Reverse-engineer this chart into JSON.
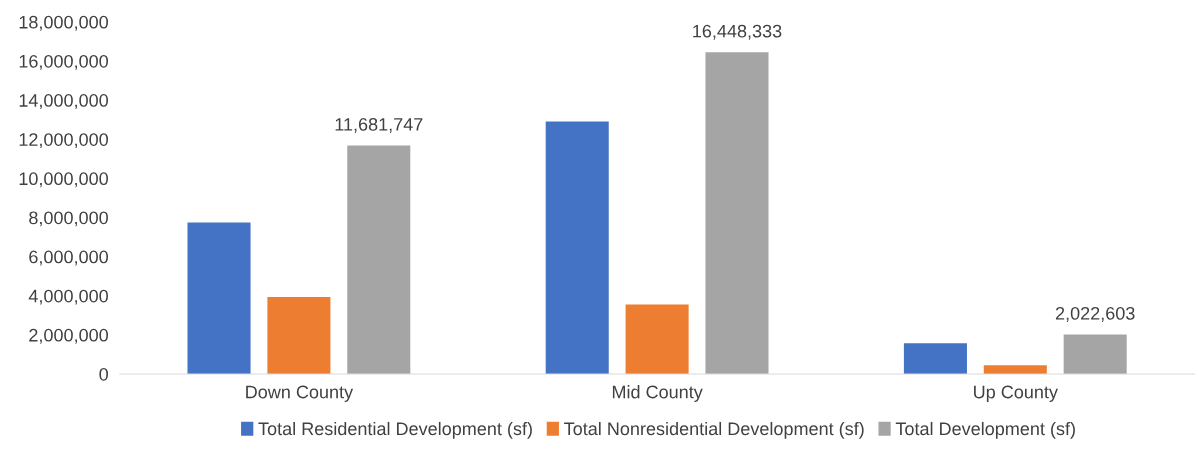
{
  "chart_data": {
    "type": "bar",
    "categories": [
      "Down County",
      "Mid County",
      "Up County"
    ],
    "series": [
      {
        "name": "Total Residential Development (sf)",
        "color": "#4472c4",
        "values": [
          7750000,
          12900000,
          1570000
        ]
      },
      {
        "name": "Total Nonresidential Development (sf)",
        "color": "#ed7d31",
        "values": [
          3930000,
          3550000,
          450000
        ]
      },
      {
        "name": "Total Development (sf)",
        "color": "#a5a5a5",
        "values": [
          11681747,
          16448333,
          2022603
        ],
        "value_labels": [
          "11,681,747",
          "16,448,333",
          "2,022,603"
        ]
      }
    ],
    "ylim": [
      0,
      18000000
    ],
    "yticks": [
      {
        "value": 0,
        "label": "0"
      },
      {
        "value": 2000000,
        "label": "2,000,000"
      },
      {
        "value": 4000000,
        "label": "4,000,000"
      },
      {
        "value": 6000000,
        "label": "6,000,000"
      },
      {
        "value": 8000000,
        "label": "8,000,000"
      },
      {
        "value": 10000000,
        "label": "10,000,000"
      },
      {
        "value": 12000000,
        "label": "12,000,000"
      },
      {
        "value": 14000000,
        "label": "14,000,000"
      },
      {
        "value": 16000000,
        "label": "16,000,000"
      },
      {
        "value": 18000000,
        "label": "18,000,000"
      }
    ],
    "legend": "bottom"
  }
}
